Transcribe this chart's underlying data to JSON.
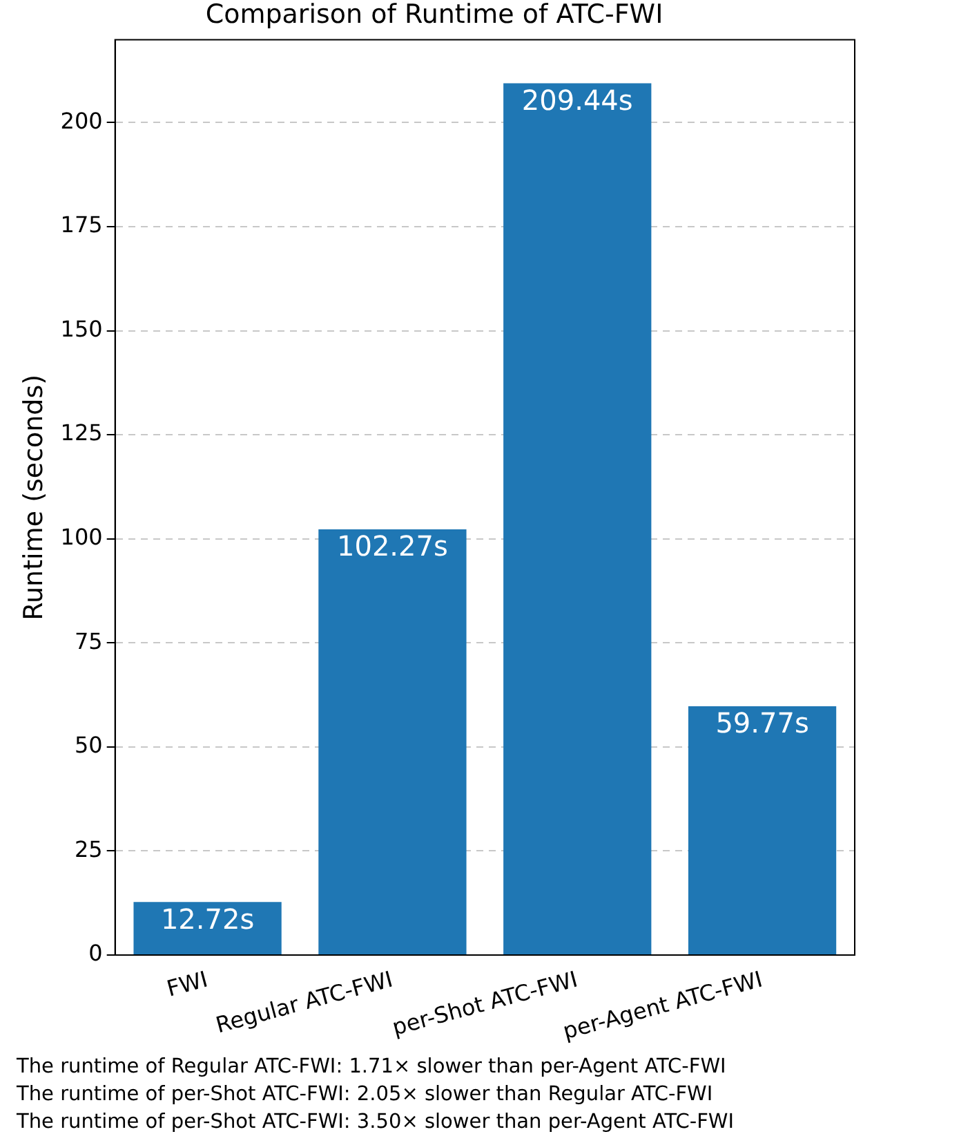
{
  "chart_data": {
    "type": "bar",
    "title": "Comparison of Runtime of ATC-FWI",
    "ylabel": "Runtime (seconds)",
    "categories": [
      "FWI",
      "Regular ATC-FWI",
      "per-Shot ATC-FWI",
      "per-Agent ATC-FWI"
    ],
    "values": [
      12.72,
      102.27,
      209.44,
      59.77
    ],
    "color": "#1f77b4",
    "value_labels": [
      "12.72s",
      "102.27s",
      "209.44s",
      "59.77s"
    ],
    "ylim": [
      0,
      219.9
    ],
    "yticks": [
      0,
      25,
      50,
      75,
      100,
      125,
      150,
      175,
      200
    ],
    "grid": "y",
    "annotations": [
      "The runtime of Regular ATC-FWI: 1.71× slower than per-Agent ATC-FWI",
      "The runtime of per-Shot ATC-FWI: 2.05× slower than Regular ATC-FWI",
      "The runtime of per-Shot ATC-FWI: 3.50× slower than per-Agent ATC-FWI"
    ]
  }
}
